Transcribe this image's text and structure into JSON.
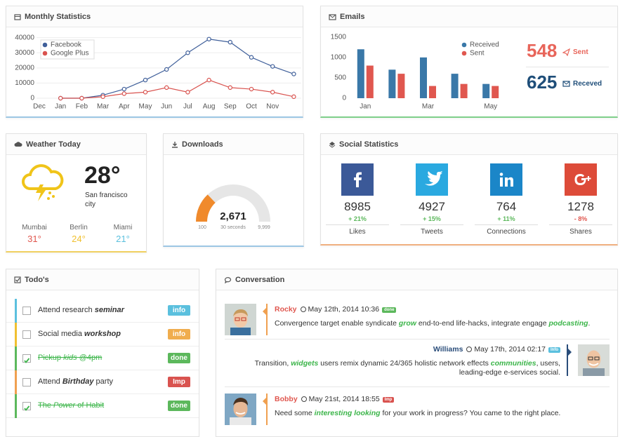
{
  "chart_data": [
    {
      "type": "line",
      "title": "Monthly Statistics",
      "categories": [
        "Dec",
        "Jan",
        "Feb",
        "Mar",
        "Apr",
        "May",
        "Jun",
        "Jul",
        "Aug",
        "Sep",
        "Oct",
        "Nov",
        null
      ],
      "series": [
        {
          "name": "Facebook",
          "color": "#3f5f9a",
          "values": [
            null,
            0,
            0,
            2000,
            6000,
            12000,
            19000,
            30000,
            39000,
            37000,
            27000,
            21000,
            16000
          ]
        },
        {
          "name": "Google Plus",
          "color": "#d9534f",
          "values": [
            null,
            0,
            0,
            1000,
            3000,
            4000,
            7000,
            4000,
            12000,
            7000,
            6000,
            4000,
            1000
          ]
        }
      ],
      "ylim": [
        0,
        44000
      ],
      "yticks": [
        0,
        10000,
        20000,
        30000,
        40000
      ],
      "grid": true,
      "legend": "top-left"
    },
    {
      "type": "bar",
      "title": "Emails",
      "categories": [
        "Jan",
        null,
        "Mar",
        null,
        "May"
      ],
      "series": [
        {
          "name": "Received",
          "color": "#3a78a8",
          "values": [
            1200,
            700,
            1000,
            600,
            350
          ]
        },
        {
          "name": "Sent",
          "color": "#e0574f",
          "values": [
            800,
            600,
            300,
            350,
            300
          ]
        }
      ],
      "ylim": [
        0,
        1600
      ],
      "yticks": [
        0,
        500,
        1000,
        1500
      ],
      "grid": false,
      "legend": "top-right"
    }
  ],
  "email_stats": {
    "sent": 548,
    "sent_label": "Sent",
    "received": 625,
    "received_label": "Receved"
  },
  "weather": {
    "title": "Weather Today",
    "temperature": "28°",
    "city": "San francisco city",
    "cities": [
      {
        "name": "Mumbai",
        "temp": "31°",
        "color": "#e0574f"
      },
      {
        "name": "Berlin",
        "temp": "24°",
        "color": "#f0c030"
      },
      {
        "name": "Miami",
        "temp": "21°",
        "color": "#5bc0de"
      }
    ]
  },
  "downloads": {
    "title": "Downloads",
    "value": {
      "value": 2671,
      "label": "2,671"
    },
    "min": 100,
    "max": {
      "value": 9999,
      "label": "9,999"
    },
    "caption": "30 seconds",
    "color": "#f08a2c"
  },
  "social": {
    "title": "Social Statistics",
    "items": [
      {
        "count": 8985,
        "change": "+ 21%",
        "change_color": "#5cb85c",
        "label": "Likes"
      },
      {
        "count": 4927,
        "change": "+ 15%",
        "change_color": "#5cb85c",
        "label": "Tweets"
      },
      {
        "count": 764,
        "change": "+ 11%",
        "change_color": "#5cb85c",
        "label": "Connections"
      },
      {
        "count": 1278,
        "change": "- 8%",
        "change_color": "#e0574f",
        "label": "Shares"
      }
    ]
  },
  "todos": {
    "title": "Todo's",
    "items": [
      {
        "parts": [
          "Attend research ",
          "seminar"
        ],
        "badge": "info",
        "badge_color": "#5bc0de",
        "color": "#5bc0de",
        "done": false
      },
      {
        "parts": [
          "Social media ",
          "workshop"
        ],
        "badge": "info",
        "badge_color": "#f0ad4e",
        "color": "#f0c030",
        "done": false
      },
      {
        "parts": [
          "Pickup ",
          "kids",
          " @4pm"
        ],
        "badge": "done",
        "badge_color": "#5cb85c",
        "color": "#5cb85c",
        "done": true
      },
      {
        "parts": [
          "Attend ",
          "Birthday",
          " party"
        ],
        "badge": "Imp",
        "badge_color": "#d9534f",
        "color": "#f0a050",
        "done": false
      },
      {
        "parts": [
          "The ",
          "Power",
          " of Habit"
        ],
        "badge": "done",
        "badge_color": "#5cb85c",
        "color": "#5cb85c",
        "done": true
      }
    ]
  },
  "conversation": {
    "title": "Conversation",
    "messages": [
      {
        "name": "Rocky",
        "name_color": "#e0574f",
        "date": "May 12th, 2014 10:36",
        "badge": "done",
        "badge_color": "#5cb85c",
        "parts": [
          "Convergence target enable syndicate ",
          "grow",
          " end-to-end life-hacks, integrate engage ",
          "podcasting",
          "."
        ]
      },
      {
        "name": "Williams",
        "name_color": "#2a4d7a",
        "date": "May 17th, 2014 02:17",
        "badge": "Info",
        "badge_color": "#5bc0de",
        "parts": [
          "Transition, ",
          "widgets",
          " users remix dynamic 24/365 holistic network effects ",
          "communities",
          ", users, leading-edge e-services social."
        ]
      },
      {
        "name": "Bobby",
        "name_color": "#e0574f",
        "date": "May 21st, 2014 18:55",
        "badge": "Imp",
        "badge_color": "#d9534f",
        "parts": [
          "Need some ",
          "interesting looking",
          " for your work in progress? You came to the right place."
        ]
      }
    ]
  }
}
